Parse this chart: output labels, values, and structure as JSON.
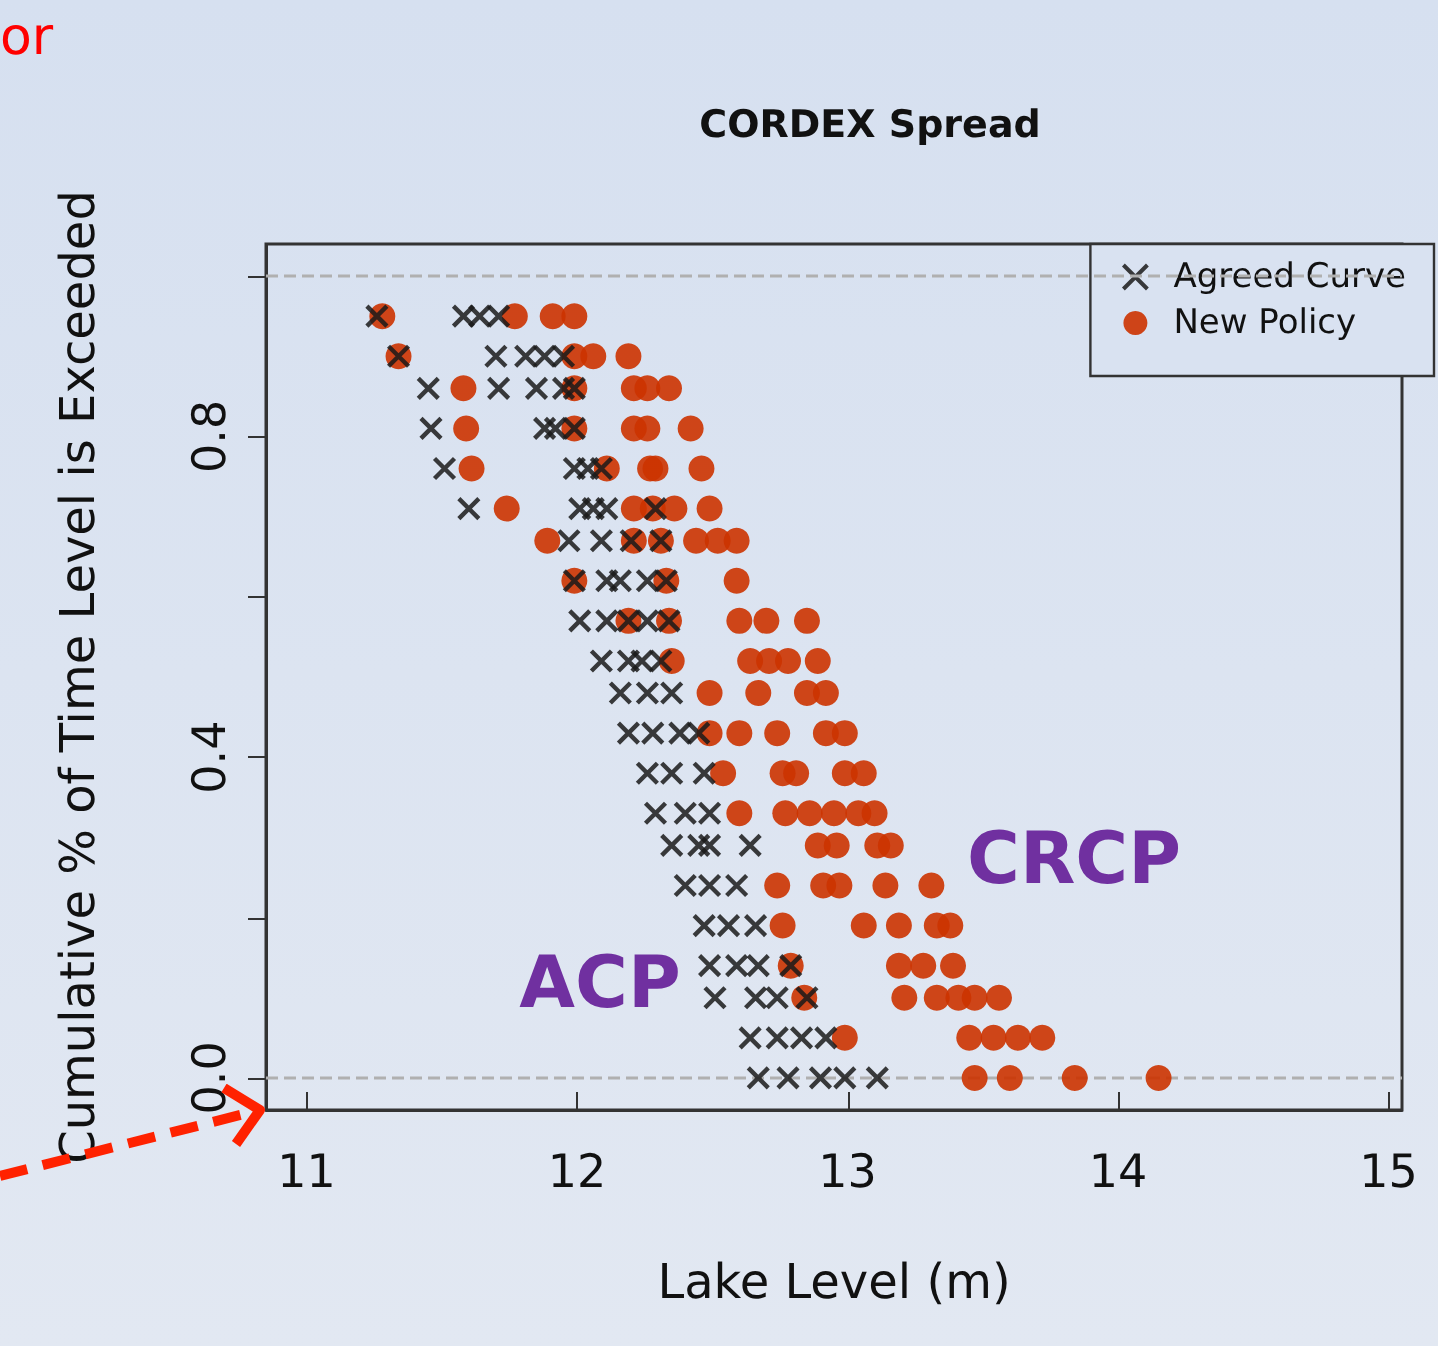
{
  "chart_data": {
    "type": "scatter",
    "title": "CORDEX Spread",
    "xlabel": "Lake Level (m)",
    "ylabel": "Cumulative % of Time Level is Exceeded",
    "xlim": [
      10.85,
      15.05
    ],
    "ylim": [
      -0.04,
      1.04
    ],
    "xticks": [
      11,
      12,
      13,
      14,
      15
    ],
    "yticks": [
      {
        "value": 0,
        "label": "0.0"
      },
      {
        "value": 0.2,
        "label": null
      },
      {
        "value": 0.4,
        "label": "0.4"
      },
      {
        "value": 0.6,
        "label": null
      },
      {
        "value": 0.8,
        "label": "0.8"
      },
      {
        "value": 1,
        "label": null
      }
    ],
    "legend": "top right",
    "grid": false,
    "ref_lines": [
      {
        "axis": "y",
        "value": 0,
        "color": "#b0b0b0",
        "line_style": "dashed"
      },
      {
        "axis": "y",
        "value": 1,
        "color": "#b0b0b0",
        "line_style": "dashed"
      }
    ],
    "annotations": [
      "or",
      "ACP",
      "CRCP"
    ],
    "series": [
      {
        "name": "Agreed Curve",
        "color": "#1a1a1a",
        "marker": "cross",
        "x": [
          11.26,
          11.58,
          11.64,
          11.71,
          11.34,
          11.7,
          11.81,
          11.88,
          11.95,
          11.45,
          11.71,
          11.85,
          11.95,
          11.99,
          11.46,
          11.88,
          11.92,
          11.99,
          11.51,
          11.99,
          12.04,
          12.09,
          11.6,
          12.01,
          12.06,
          12.11,
          12.29,
          11.97,
          12.09,
          12.2,
          12.31,
          11.99,
          12.11,
          12.16,
          12.26,
          12.33,
          12.01,
          12.11,
          12.19,
          12.26,
          12.34,
          12.09,
          12.19,
          12.24,
          12.31,
          12.16,
          12.26,
          12.35,
          12.19,
          12.28,
          12.38,
          12.45,
          12.26,
          12.35,
          12.47,
          12.29,
          12.4,
          12.49,
          12.35,
          12.45,
          12.49,
          12.64,
          12.4,
          12.49,
          12.59,
          12.47,
          12.56,
          12.66,
          12.49,
          12.59,
          12.67,
          12.79,
          12.51,
          12.66,
          12.74,
          12.85,
          12.64,
          12.74,
          12.83,
          12.92,
          12.67,
          12.78,
          12.9,
          12.99,
          13.11
        ],
        "values": [
          0.95,
          0.95,
          0.95,
          0.95,
          0.9,
          0.9,
          0.9,
          0.9,
          0.9,
          0.86,
          0.86,
          0.86,
          0.86,
          0.86,
          0.81,
          0.81,
          0.81,
          0.81,
          0.76,
          0.76,
          0.76,
          0.76,
          0.71,
          0.71,
          0.71,
          0.71,
          0.71,
          0.67,
          0.67,
          0.67,
          0.67,
          0.62,
          0.62,
          0.62,
          0.62,
          0.62,
          0.57,
          0.57,
          0.57,
          0.57,
          0.57,
          0.52,
          0.52,
          0.52,
          0.52,
          0.48,
          0.48,
          0.48,
          0.43,
          0.43,
          0.43,
          0.43,
          0.38,
          0.38,
          0.38,
          0.33,
          0.33,
          0.33,
          0.29,
          0.29,
          0.29,
          0.29,
          0.24,
          0.24,
          0.24,
          0.19,
          0.19,
          0.19,
          0.14,
          0.14,
          0.14,
          0.14,
          0.1,
          0.1,
          0.1,
          0.1,
          0.05,
          0.05,
          0.05,
          0.05,
          0,
          0,
          0,
          0,
          0
        ]
      },
      {
        "name": "New Policy",
        "color": "#cc3300",
        "marker": "circle",
        "x": [
          11.28,
          11.77,
          11.91,
          11.99,
          11.34,
          11.99,
          12.06,
          12.19,
          11.58,
          11.99,
          12.21,
          12.26,
          12.34,
          11.59,
          11.99,
          12.21,
          12.26,
          12.42,
          11.61,
          12.11,
          12.27,
          12.29,
          12.46,
          11.74,
          12.21,
          12.28,
          12.36,
          12.49,
          11.89,
          12.21,
          12.31,
          12.44,
          12.52,
          12.59,
          11.99,
          12.33,
          12.59,
          12.19,
          12.34,
          12.6,
          12.7,
          12.85,
          12.35,
          12.64,
          12.71,
          12.78,
          12.89,
          12.49,
          12.67,
          12.85,
          12.92,
          12.49,
          12.6,
          12.74,
          12.92,
          12.99,
          12.54,
          12.76,
          12.81,
          12.99,
          13.06,
          12.6,
          12.77,
          12.86,
          12.95,
          13.04,
          13.1,
          12.89,
          12.96,
          13.11,
          13.16,
          12.74,
          12.91,
          12.97,
          13.14,
          13.31,
          12.76,
          13.06,
          13.19,
          13.33,
          13.38,
          12.79,
          13.19,
          13.28,
          13.39,
          12.84,
          13.21,
          13.33,
          13.41,
          13.47,
          13.56,
          12.99,
          13.45,
          13.54,
          13.63,
          13.72,
          13.47,
          13.6,
          13.84,
          14.15
        ],
        "values": [
          0.95,
          0.95,
          0.95,
          0.95,
          0.9,
          0.9,
          0.9,
          0.9,
          0.86,
          0.86,
          0.86,
          0.86,
          0.86,
          0.81,
          0.81,
          0.81,
          0.81,
          0.81,
          0.76,
          0.76,
          0.76,
          0.76,
          0.76,
          0.71,
          0.71,
          0.71,
          0.71,
          0.71,
          0.67,
          0.67,
          0.67,
          0.67,
          0.67,
          0.67,
          0.62,
          0.62,
          0.62,
          0.57,
          0.57,
          0.57,
          0.57,
          0.57,
          0.52,
          0.52,
          0.52,
          0.52,
          0.52,
          0.48,
          0.48,
          0.48,
          0.48,
          0.43,
          0.43,
          0.43,
          0.43,
          0.43,
          0.38,
          0.38,
          0.38,
          0.38,
          0.38,
          0.33,
          0.33,
          0.33,
          0.33,
          0.33,
          0.33,
          0.29,
          0.29,
          0.29,
          0.29,
          0.24,
          0.24,
          0.24,
          0.24,
          0.24,
          0.19,
          0.19,
          0.19,
          0.19,
          0.19,
          0.14,
          0.14,
          0.14,
          0.14,
          0.1,
          0.1,
          0.1,
          0.1,
          0.1,
          0.1,
          0.05,
          0.05,
          0.05,
          0.05,
          0.05,
          0,
          0,
          0,
          0
        ]
      }
    ]
  }
}
